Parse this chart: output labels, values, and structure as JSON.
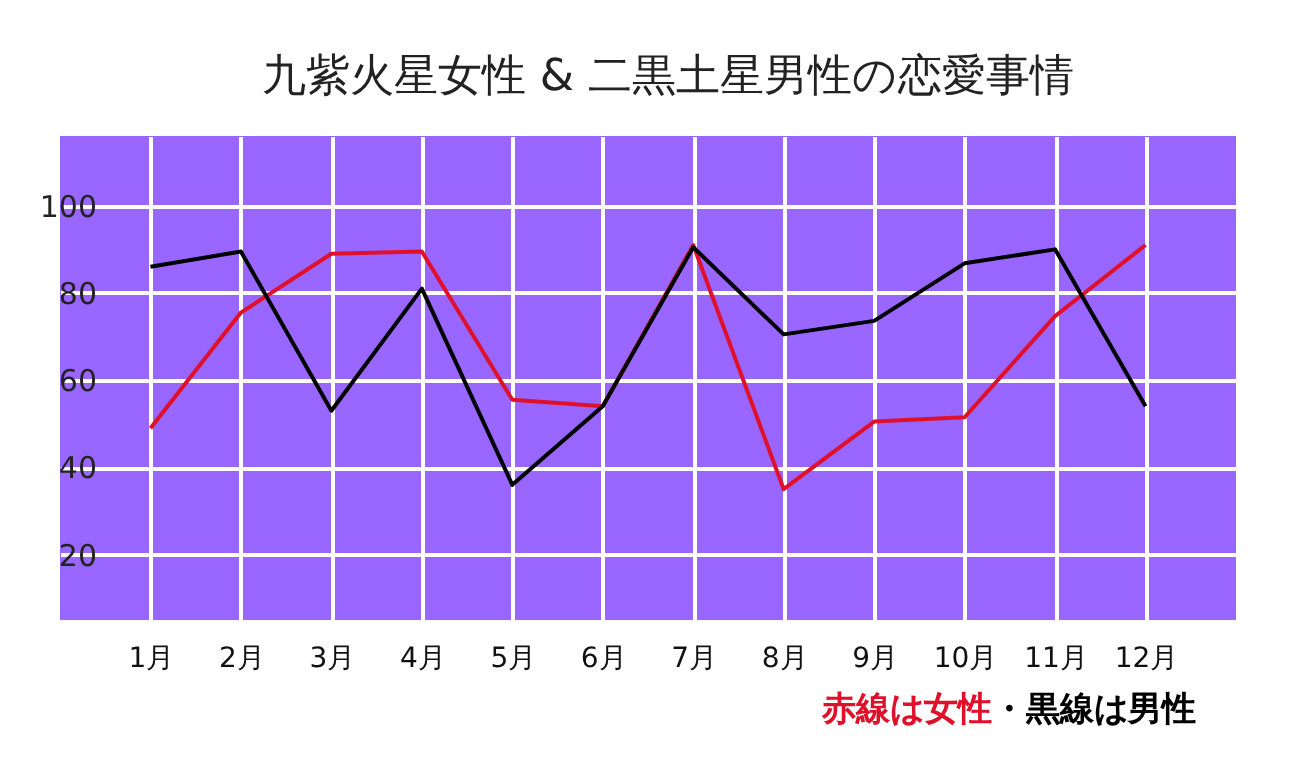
{
  "chart_data": {
    "type": "line",
    "title": "九紫火星女性 & 二黒土星男性の恋愛事情",
    "categories": [
      "1月",
      "2月",
      "3月",
      "4月",
      "5月",
      "6月",
      "7月",
      "8月",
      "9月",
      "10月",
      "11月",
      "12月"
    ],
    "series": [
      {
        "name": "赤線は女性",
        "color": "#e0102a",
        "values": [
          49,
          75.5,
          89,
          89.5,
          55.5,
          54,
          91,
          35,
          50.5,
          51.5,
          74.7,
          91
        ]
      },
      {
        "name": "・黒線は男性",
        "color": "#000000",
        "values": [
          86,
          89.5,
          53,
          81,
          36,
          54,
          90.5,
          70.5,
          73.6,
          86.8,
          90,
          54
        ]
      }
    ],
    "ylim": [
      5,
      116
    ],
    "yticks": [
      20,
      40,
      60,
      80,
      100
    ],
    "grid": true,
    "marker": "none",
    "line_style": "solid"
  }
}
